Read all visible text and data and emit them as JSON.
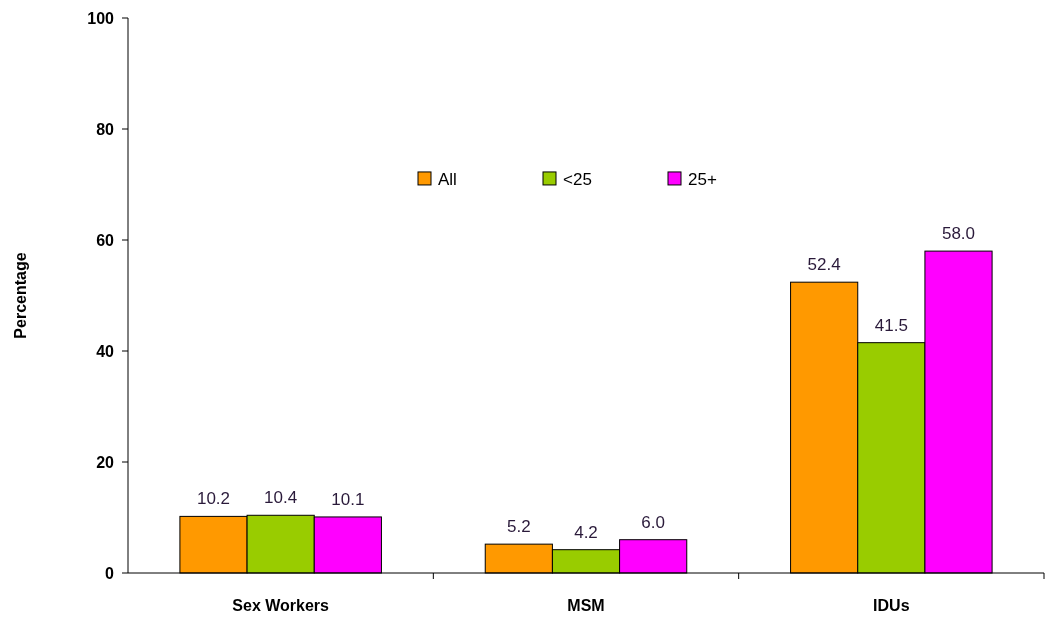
{
  "chart_data": {
    "type": "bar",
    "ylabel": "Percentage",
    "categories": [
      "Sex Workers",
      "MSM",
      "IDUs"
    ],
    "series": [
      {
        "name": "All",
        "color": "#ff9900",
        "values": [
          10.2,
          5.2,
          52.4
        ]
      },
      {
        "name": "<25",
        "color": "#99cc00",
        "values": [
          10.4,
          4.2,
          41.5
        ]
      },
      {
        "name": "25+",
        "color": "#ff00ff",
        "values": [
          10.1,
          6.0,
          58.0
        ]
      }
    ],
    "value_labels": [
      [
        "10.2",
        "5.2",
        "52.4"
      ],
      [
        "10.4",
        "4.2",
        "41.5"
      ],
      [
        "10.1",
        "6.0",
        "58.0"
      ]
    ],
    "ylim": [
      0,
      100
    ],
    "yticks": [
      0,
      20,
      40,
      60,
      80,
      100
    ],
    "legend": "top",
    "grid": false
  }
}
